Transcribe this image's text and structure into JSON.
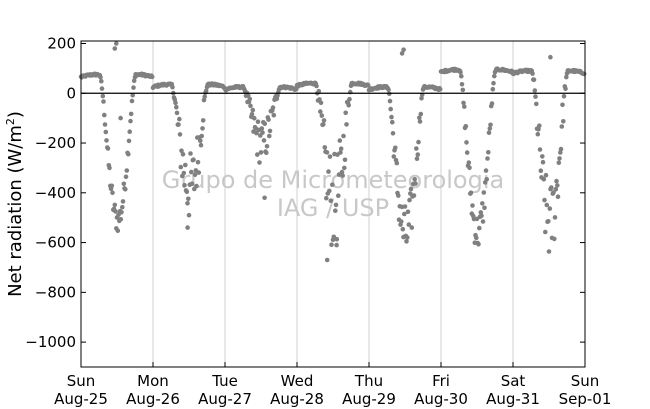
{
  "chart_data": {
    "type": "scatter",
    "ylabel": "Net radiation (W/m",
    "ylabel_sup": "2",
    "ylabel_close": ")",
    "ylim": [
      -1100,
      210
    ],
    "yticks": [
      200,
      0,
      -200,
      -400,
      -600,
      -800,
      -1000
    ],
    "ytick_labels": [
      "200",
      "0",
      "−200",
      "−400",
      "−600",
      "−800",
      "−1000"
    ],
    "xlim": [
      0,
      7
    ],
    "xticks": [
      {
        "day": "Sun",
        "date": "Aug-25"
      },
      {
        "day": "Mon",
        "date": "Aug-26"
      },
      {
        "day": "Tue",
        "date": "Aug-27"
      },
      {
        "day": "Wed",
        "date": "Aug-28"
      },
      {
        "day": "Thu",
        "date": "Aug-29"
      },
      {
        "day": "Fri",
        "date": "Aug-30"
      },
      {
        "day": "Sat",
        "date": "Aug-31"
      },
      {
        "day": "Sun",
        "date": "Sep-01"
      }
    ],
    "grid": "vertical",
    "zero_line": true,
    "marker_color": "#808080",
    "watermark": [
      "Grupo de Micrometeorologia",
      "IAG / USP"
    ],
    "days": [
      {
        "start": 0,
        "night": 65,
        "min": -510,
        "scatter": 0.15,
        "outliers": [
          [
            0.49,
            200
          ],
          [
            0.47,
            180
          ],
          [
            0.55,
            -100
          ]
        ]
      },
      {
        "start": 1,
        "night": 25,
        "min": -380,
        "scatter": 0.6,
        "outliers": [
          [
            1.48,
            -540
          ]
        ]
      },
      {
        "start": 2,
        "night": 15,
        "min": -200,
        "scatter": 0.7,
        "outliers": [
          [
            2.55,
            -420
          ]
        ]
      },
      {
        "start": 3,
        "night": 30,
        "min": -440,
        "scatter": 0.7,
        "outliers": [
          [
            3.42,
            -670
          ],
          [
            3.55,
            -610
          ]
        ]
      },
      {
        "start": 4,
        "night": 15,
        "min": -570,
        "scatter": 0.35,
        "outliers": [
          [
            4.48,
            175
          ],
          [
            4.46,
            160
          ]
        ]
      },
      {
        "start": 5,
        "night": 85,
        "min": -560,
        "scatter": 0.2,
        "outliers": []
      },
      {
        "start": 6,
        "night": 80,
        "min": -520,
        "scatter": 0.45,
        "outliers": [
          [
            6.52,
            145
          ]
        ]
      }
    ]
  }
}
